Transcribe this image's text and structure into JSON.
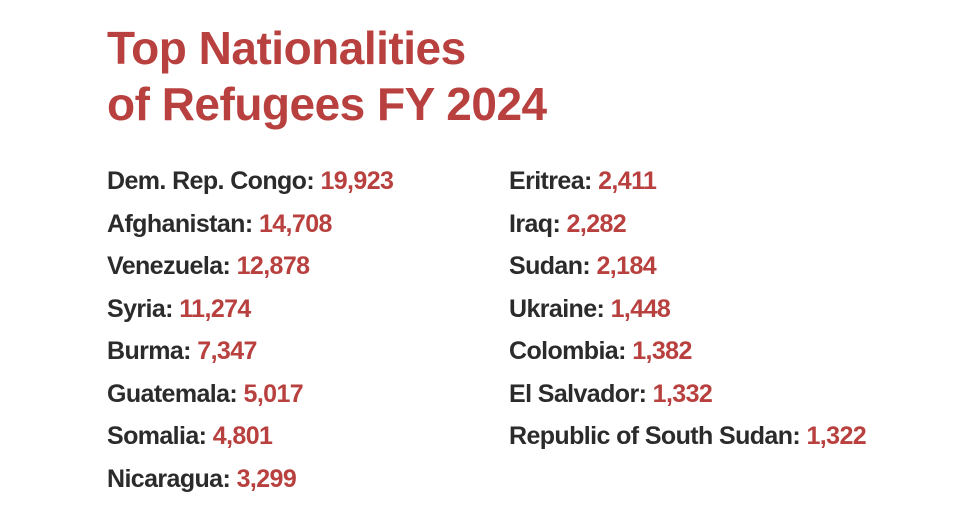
{
  "title": {
    "line1": "Top Nationalities",
    "line2": "of Refugees FY 2024"
  },
  "left_column": [
    {
      "country": "Dem. Rep. Congo:",
      "count": "19,923"
    },
    {
      "country": "Afghanistan:",
      "count": "14,708"
    },
    {
      "country": "Venezuela:",
      "count": "12,878"
    },
    {
      "country": "Syria:",
      "count": "11,274"
    },
    {
      "country": "Burma:",
      "count": "7,347"
    },
    {
      "country": "Guatemala:",
      "count": "5,017"
    },
    {
      "country": "Somalia:",
      "count": "4,801"
    },
    {
      "country": "Nicaragua:",
      "count": "3,299"
    }
  ],
  "right_column": [
    {
      "country": "Eritrea:",
      "count": "2,411"
    },
    {
      "country": "Iraq:",
      "count": "2,282"
    },
    {
      "country": "Sudan:",
      "count": "2,184"
    },
    {
      "country": "Ukraine:",
      "count": "1,448"
    },
    {
      "country": "Colombia:",
      "count": "1,382"
    },
    {
      "country": "El Salvador:",
      "count": "1,332"
    },
    {
      "country": "Republic of South Sudan:",
      "count": "1,322"
    }
  ],
  "colors": {
    "accent": "#b8403e",
    "text": "#2b2b2b",
    "background": "#ffffff"
  }
}
